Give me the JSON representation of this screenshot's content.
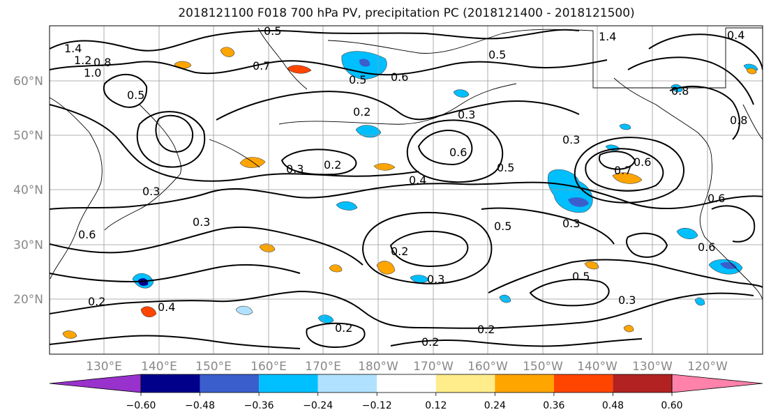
{
  "title": "2018121100 F018 700 hPa PV, precipitation PC (2018121400 - 2018121500)",
  "lat_labels": [
    "60°N",
    "50°N",
    "40°N",
    "30°N",
    "20°N"
  ],
  "lon_labels": [
    "130°E",
    "140°E",
    "150°E",
    "160°E",
    "170°E",
    "180°W",
    "170°W",
    "160°W",
    "150°W",
    "140°W",
    "130°W",
    "120°W"
  ],
  "contour_labels": [
    "1.4",
    "1.2",
    "1.0",
    "0.8",
    "0.5",
    "0.7",
    "0.5",
    "0.6",
    "0.5",
    "0.4",
    "0.5",
    "1.4",
    "0.8",
    "0.3",
    "0.2",
    "0.3",
    "0.2",
    "0.6",
    "0.4",
    "0.3",
    "0.5",
    "0.6",
    "0.7",
    "0.3",
    "0.3",
    "0.5",
    "0.3",
    "0.6",
    "0.6",
    "0.2",
    "0.3",
    "0.5",
    "0.2",
    "0.4",
    "0.2",
    "0.2",
    "0.2",
    "0.3",
    "0.8",
    "0.6"
  ],
  "colorbar": {
    "ticks": [
      "−0.60",
      "−0.48",
      "−0.36",
      "−0.24",
      "−0.12",
      "0.12",
      "0.24",
      "0.36",
      "0.48",
      "0.60"
    ],
    "colors": [
      "#9932CC",
      "#00008B",
      "#3A5FCD",
      "#00BFFF",
      "#B0E2FF",
      "#FFFFFF",
      "#FFEC8B",
      "#FFA500",
      "#FF4500",
      "#B22222",
      "#FF82AB"
    ]
  }
}
